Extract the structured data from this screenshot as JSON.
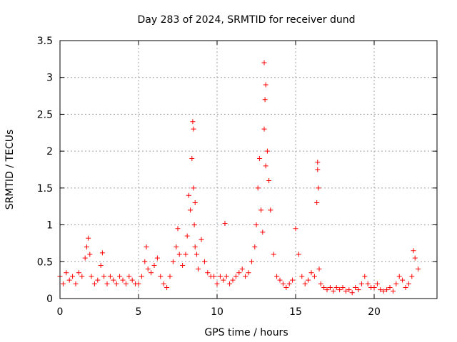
{
  "chart_data": {
    "type": "scatter",
    "title": "Day 283 of 2024, SRMTID for receiver dund",
    "xlabel": "GPS time / hours",
    "ylabel": "SRMTID / TECUs",
    "xlim": [
      0,
      24
    ],
    "ylim": [
      0,
      3.5
    ],
    "xticks": [
      0,
      5,
      10,
      15,
      20
    ],
    "yticks": [
      0,
      0.5,
      1,
      1.5,
      2,
      2.5,
      3,
      3.5
    ],
    "x_tick_labels": [
      "0",
      "5",
      "10",
      "15",
      "20"
    ],
    "y_tick_labels": [
      "0",
      "0.5",
      "1",
      "1.5",
      "2",
      "2.5",
      "3",
      "3.5"
    ],
    "grid": true,
    "marker": "+",
    "color": "#ff0000",
    "series": [
      {
        "name": "SRMTID",
        "x": [
          0.0,
          0.2,
          0.4,
          0.6,
          0.8,
          1.0,
          1.2,
          1.4,
          1.6,
          1.7,
          1.8,
          1.9,
          2.0,
          2.2,
          2.4,
          2.6,
          2.7,
          2.8,
          3.0,
          3.2,
          3.4,
          3.6,
          3.8,
          4.0,
          4.2,
          4.4,
          4.6,
          4.8,
          5.0,
          5.2,
          5.4,
          5.5,
          5.6,
          5.8,
          6.0,
          6.2,
          6.4,
          6.6,
          6.8,
          7.0,
          7.2,
          7.4,
          7.5,
          7.6,
          7.8,
          8.0,
          8.1,
          8.2,
          8.3,
          8.4,
          8.45,
          8.5,
          8.5,
          8.55,
          8.6,
          8.6,
          8.7,
          8.8,
          9.0,
          9.2,
          9.4,
          9.6,
          9.8,
          10.0,
          10.2,
          10.4,
          10.5,
          10.6,
          10.8,
          11.0,
          11.2,
          11.4,
          11.6,
          11.8,
          12.0,
          12.2,
          12.4,
          12.5,
          12.6,
          12.7,
          12.8,
          12.9,
          13.0,
          13.0,
          13.05,
          13.1,
          13.1,
          13.2,
          13.3,
          13.4,
          13.6,
          13.8,
          14.0,
          14.2,
          14.4,
          14.6,
          14.8,
          15.0,
          15.2,
          15.4,
          15.6,
          15.8,
          16.0,
          16.2,
          16.35,
          16.4,
          16.4,
          16.45,
          16.5,
          16.6,
          16.8,
          17.0,
          17.2,
          17.4,
          17.6,
          17.8,
          18.0,
          18.2,
          18.4,
          18.6,
          18.8,
          19.0,
          19.2,
          19.4,
          19.6,
          19.8,
          20.0,
          20.2,
          20.4,
          20.6,
          20.8,
          21.0,
          21.2,
          21.4,
          21.6,
          21.8,
          22.0,
          22.2,
          22.4,
          22.5,
          22.6,
          22.8
        ],
        "y": [
          0.3,
          0.2,
          0.35,
          0.25,
          0.3,
          0.2,
          0.35,
          0.3,
          0.55,
          0.7,
          0.82,
          0.6,
          0.3,
          0.2,
          0.25,
          0.45,
          0.62,
          0.3,
          0.2,
          0.3,
          0.25,
          0.2,
          0.3,
          0.25,
          0.2,
          0.3,
          0.25,
          0.2,
          0.2,
          0.3,
          0.5,
          0.7,
          0.4,
          0.35,
          0.45,
          0.55,
          0.3,
          0.2,
          0.15,
          0.3,
          0.5,
          0.7,
          0.95,
          0.6,
          0.45,
          0.6,
          0.85,
          1.4,
          1.2,
          1.9,
          2.4,
          2.3,
          1.5,
          1.0,
          0.7,
          1.3,
          0.6,
          0.4,
          0.8,
          0.5,
          0.35,
          0.3,
          0.3,
          0.2,
          0.3,
          0.25,
          1.02,
          0.3,
          0.2,
          0.25,
          0.3,
          0.35,
          0.4,
          0.3,
          0.35,
          0.5,
          0.7,
          1.0,
          1.5,
          1.9,
          1.2,
          0.9,
          2.3,
          3.2,
          2.7,
          2.9,
          1.8,
          2.0,
          1.6,
          1.2,
          0.6,
          0.3,
          0.25,
          0.2,
          0.15,
          0.2,
          0.25,
          0.95,
          0.6,
          0.3,
          0.2,
          0.25,
          0.35,
          0.3,
          1.3,
          1.75,
          1.85,
          1.5,
          0.4,
          0.2,
          0.15,
          0.12,
          0.15,
          0.1,
          0.15,
          0.12,
          0.15,
          0.1,
          0.12,
          0.08,
          0.15,
          0.12,
          0.2,
          0.3,
          0.2,
          0.15,
          0.15,
          0.2,
          0.12,
          0.1,
          0.12,
          0.15,
          0.1,
          0.2,
          0.3,
          0.25,
          0.15,
          0.2,
          0.3,
          0.65,
          0.55,
          0.4
        ]
      }
    ]
  }
}
